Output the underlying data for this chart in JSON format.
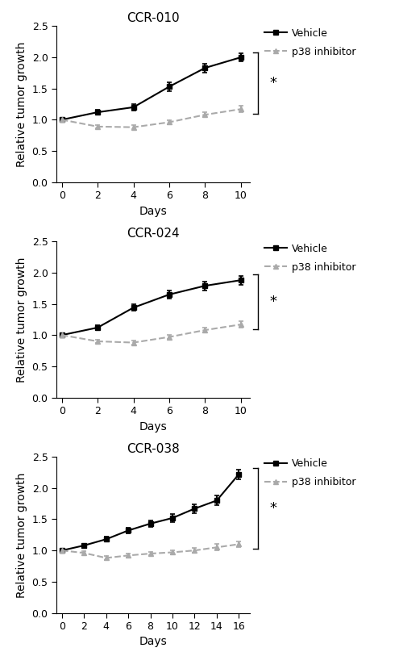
{
  "panels": [
    {
      "title": "CCR-010",
      "x_days": [
        0,
        2,
        4,
        6,
        8,
        10
      ],
      "vehicle_y": [
        1.0,
        1.12,
        1.2,
        1.53,
        1.83,
        2.0
      ],
      "vehicle_err": [
        0.02,
        0.04,
        0.05,
        0.07,
        0.07,
        0.06
      ],
      "inhibitor_y": [
        1.0,
        0.89,
        0.88,
        0.96,
        1.08,
        1.17
      ],
      "inhibitor_err": [
        0.02,
        0.03,
        0.03,
        0.03,
        0.04,
        0.05
      ],
      "xlim": [
        -0.3,
        10.5
      ],
      "xticks": [
        0,
        2,
        4,
        6,
        8,
        10
      ],
      "ylim": [
        0,
        2.5
      ],
      "yticks": [
        0,
        0.5,
        1.0,
        1.5,
        2.0,
        2.5
      ]
    },
    {
      "title": "CCR-024",
      "x_days": [
        0,
        2,
        4,
        6,
        8,
        10
      ],
      "vehicle_y": [
        1.0,
        1.12,
        1.44,
        1.65,
        1.79,
        1.88
      ],
      "vehicle_err": [
        0.02,
        0.04,
        0.05,
        0.06,
        0.07,
        0.07
      ],
      "inhibitor_y": [
        1.0,
        0.9,
        0.88,
        0.97,
        1.08,
        1.17
      ],
      "inhibitor_err": [
        0.02,
        0.03,
        0.03,
        0.03,
        0.04,
        0.05
      ],
      "xlim": [
        -0.3,
        10.5
      ],
      "xticks": [
        0,
        2,
        4,
        6,
        8,
        10
      ],
      "ylim": [
        0,
        2.5
      ],
      "yticks": [
        0,
        0.5,
        1.0,
        1.5,
        2.0,
        2.5
      ]
    },
    {
      "title": "CCR-038",
      "x_days": [
        0,
        2,
        4,
        6,
        8,
        10,
        12,
        14,
        16
      ],
      "vehicle_y": [
        1.0,
        1.08,
        1.18,
        1.32,
        1.43,
        1.52,
        1.67,
        1.8,
        2.22
      ],
      "vehicle_err": [
        0.02,
        0.03,
        0.04,
        0.05,
        0.05,
        0.06,
        0.07,
        0.08,
        0.08
      ],
      "inhibitor_y": [
        1.0,
        0.96,
        0.88,
        0.92,
        0.95,
        0.97,
        1.0,
        1.05,
        1.1
      ],
      "inhibitor_err": [
        0.02,
        0.03,
        0.03,
        0.03,
        0.03,
        0.03,
        0.04,
        0.05,
        0.05
      ],
      "xlim": [
        -0.5,
        17.0
      ],
      "xticks": [
        0,
        2,
        4,
        6,
        8,
        10,
        12,
        14,
        16
      ],
      "ylim": [
        0,
        2.5
      ],
      "yticks": [
        0,
        0.5,
        1.0,
        1.5,
        2.0,
        2.5
      ]
    }
  ],
  "vehicle_color": "#000000",
  "inhibitor_color": "#aaaaaa",
  "ylabel": "Relative tumor growth",
  "xlabel": "Days",
  "legend_vehicle": "Vehicle",
  "legend_inhibitor": "p38 inhibitor",
  "significance_label": "*",
  "title_fontsize": 11,
  "label_fontsize": 10,
  "tick_fontsize": 9,
  "legend_fontsize": 9
}
